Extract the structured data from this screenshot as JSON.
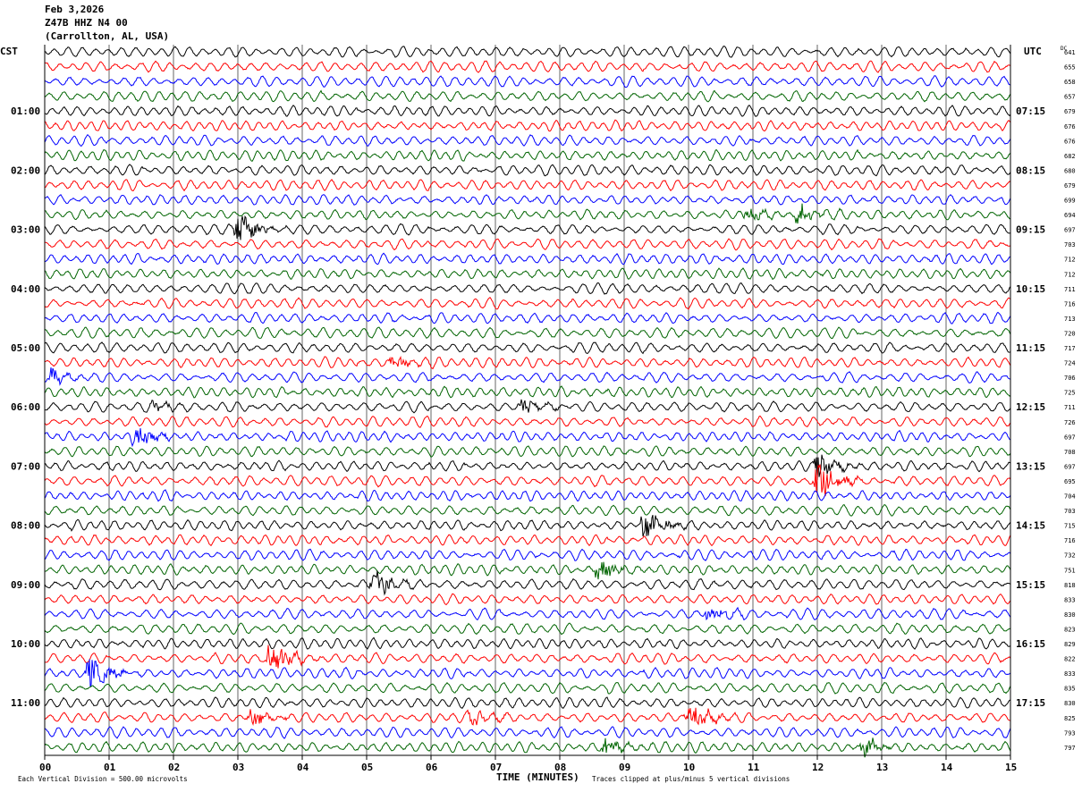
{
  "header": {
    "date": "Feb 3,2026",
    "station": "Z47B HHZ N4 00",
    "location": "(Carrollton, AL, USA)"
  },
  "chart_data": {
    "type": "line",
    "title": "Z47B HHZ N4 00 helicorder",
    "left_timezone": "CST",
    "right_timezone": "UTC",
    "dc_header": "DC",
    "xlabel": "TIME (MINUTES)",
    "xlim": [
      0,
      15
    ],
    "x_ticks": [
      "00",
      "01",
      "02",
      "03",
      "04",
      "05",
      "06",
      "07",
      "08",
      "09",
      "10",
      "11",
      "12",
      "13",
      "14",
      "15"
    ],
    "rows_per_hour": 4,
    "row_count": 48,
    "trace_colors": [
      "#000000",
      "#ff0000",
      "#0000ff",
      "#006400"
    ],
    "left_time_labels": [
      {
        "row": 4,
        "label": "01:00"
      },
      {
        "row": 8,
        "label": "02:00"
      },
      {
        "row": 12,
        "label": "03:00"
      },
      {
        "row": 16,
        "label": "04:00"
      },
      {
        "row": 20,
        "label": "05:00"
      },
      {
        "row": 24,
        "label": "06:00"
      },
      {
        "row": 28,
        "label": "07:00"
      },
      {
        "row": 32,
        "label": "08:00"
      },
      {
        "row": 36,
        "label": "09:00"
      },
      {
        "row": 40,
        "label": "10:00"
      },
      {
        "row": 44,
        "label": "11:00"
      }
    ],
    "right_time_labels": [
      {
        "row": 4,
        "label": "07:15"
      },
      {
        "row": 8,
        "label": "08:15"
      },
      {
        "row": 12,
        "label": "09:15"
      },
      {
        "row": 16,
        "label": "10:15"
      },
      {
        "row": 20,
        "label": "11:15"
      },
      {
        "row": 24,
        "label": "12:15"
      },
      {
        "row": 28,
        "label": "13:15"
      },
      {
        "row": 32,
        "label": "14:15"
      },
      {
        "row": 36,
        "label": "15:15"
      },
      {
        "row": 40,
        "label": "16:15"
      },
      {
        "row": 44,
        "label": "17:15"
      }
    ],
    "dc_values": [
      "641",
      "655",
      "658",
      "657",
      "679",
      "676",
      "676",
      "682",
      "680",
      "679",
      "699",
      "694",
      "697",
      "703",
      "712",
      "712",
      "711",
      "716",
      "713",
      "720",
      "717",
      "724",
      "706",
      "725",
      "711",
      "726",
      "697",
      "708",
      "697",
      "695",
      "704",
      "703",
      "715",
      "716",
      "732",
      "751",
      "818",
      "833",
      "830",
      "823",
      "829",
      "822",
      "833",
      "835",
      "830",
      "825",
      "793",
      "797"
    ],
    "events": [
      {
        "row": 11,
        "minute": 10.9,
        "amp": 1.5
      },
      {
        "row": 11,
        "minute": 11.7,
        "amp": 2.2
      },
      {
        "row": 12,
        "minute": 3.0,
        "amp": 3.5
      },
      {
        "row": 21,
        "minute": 5.4,
        "amp": 1.4
      },
      {
        "row": 22,
        "minute": 0.1,
        "amp": 1.5
      },
      {
        "row": 24,
        "minute": 1.7,
        "amp": 1.3
      },
      {
        "row": 24,
        "minute": 7.4,
        "amp": 2.2
      },
      {
        "row": 26,
        "minute": 1.4,
        "amp": 2.6
      },
      {
        "row": 28,
        "minute": 12.0,
        "amp": 3.0
      },
      {
        "row": 29,
        "minute": 12.0,
        "amp": 4.5
      },
      {
        "row": 32,
        "minute": 9.3,
        "amp": 3.5
      },
      {
        "row": 35,
        "minute": 8.6,
        "amp": 2.5
      },
      {
        "row": 36,
        "minute": 5.1,
        "amp": 3.5
      },
      {
        "row": 38,
        "minute": 10.3,
        "amp": 1.8
      },
      {
        "row": 41,
        "minute": 3.5,
        "amp": 3.8
      },
      {
        "row": 42,
        "minute": 0.7,
        "amp": 4.0
      },
      {
        "row": 45,
        "minute": 3.2,
        "amp": 2.2
      },
      {
        "row": 45,
        "minute": 6.6,
        "amp": 2.2
      },
      {
        "row": 45,
        "minute": 10.0,
        "amp": 3.2
      },
      {
        "row": 47,
        "minute": 8.7,
        "amp": 2.2
      },
      {
        "row": 47,
        "minute": 12.7,
        "amp": 2.0
      }
    ]
  },
  "footer": {
    "scale": "Each Vertical Division =  500.00 microvolts",
    "clip_note": "Traces clipped at plus/minus 5 vertical divisions"
  }
}
